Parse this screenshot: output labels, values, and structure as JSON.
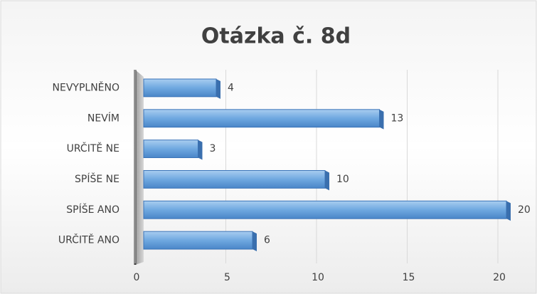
{
  "chart_data": {
    "type": "bar",
    "orientation": "horizontal",
    "title": "Otázka č. 8d",
    "categories": [
      "NEVYPLNĚNO",
      "NEVÍM",
      "URČITĚ NE",
      "SPÍŠE NE",
      "SPÍŠE ANO",
      "URČITĚ ANO"
    ],
    "values": [
      4,
      13,
      3,
      10,
      20,
      6
    ],
    "color": "#5b9bd5",
    "xlim": [
      0,
      20
    ],
    "xticks": [
      0,
      5,
      10,
      15,
      20
    ],
    "grid": true
  }
}
